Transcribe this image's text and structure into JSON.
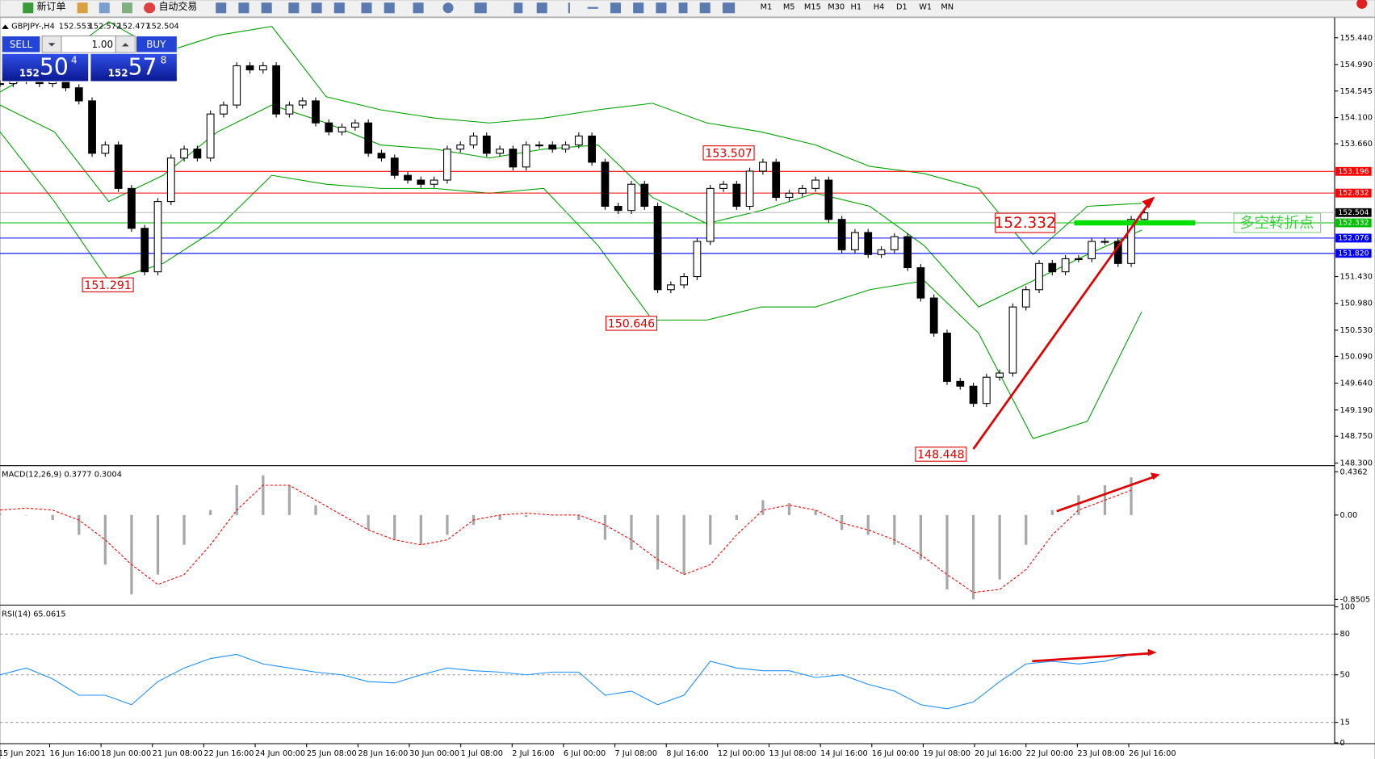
{
  "toolbar": {
    "new_order": "新订单",
    "auto_trading": "自动交易",
    "timeframes": [
      "M1",
      "M5",
      "M15",
      "M30",
      "H1",
      "H4",
      "D1",
      "W1",
      "MN"
    ]
  },
  "header": {
    "symbol": "GBPJPY-,H4",
    "ohlc": [
      "152.553",
      "152.572",
      "152.477",
      "152.504"
    ]
  },
  "trade_panel": {
    "sell": "SELL",
    "buy": "BUY",
    "volume": "1.00",
    "bid": {
      "big": "152",
      "pips": "50",
      "point": "4"
    },
    "ask": {
      "big": "152",
      "pips": "57",
      "point": "8"
    }
  },
  "chart_data": [
    {
      "type": "candlestick",
      "values": [
        154.67,
        154.72,
        154.75,
        154.67,
        154.72,
        154.6,
        154.38,
        153.5,
        153.64,
        152.91,
        152.24,
        151.51,
        152.69,
        153.42,
        153.57,
        153.42,
        154.16,
        154.31,
        154.97,
        154.9,
        154.97,
        154.16,
        154.31,
        154.38,
        154.01,
        153.86,
        153.94,
        154.01,
        153.5,
        153.42,
        153.13,
        153.05,
        152.98,
        153.05,
        153.57,
        153.64,
        153.79,
        153.5,
        153.57,
        153.27,
        153.64,
        153.64,
        153.57,
        153.64,
        153.79,
        153.35,
        152.61,
        152.54,
        152.98,
        152.61,
        151.21,
        151.29,
        151.43,
        152.02,
        152.91,
        152.98,
        152.61,
        153.2,
        153.35,
        152.76,
        152.83,
        152.91,
        153.05,
        152.39,
        151.88,
        152.17,
        151.8,
        151.88,
        152.1,
        151.58,
        151.07,
        150.48,
        149.67,
        149.59,
        149.3,
        149.74,
        149.81,
        150.92,
        151.21,
        151.65,
        151.51,
        151.73,
        151.73,
        152.02,
        152.02,
        151.65,
        152.39,
        152.5
      ],
      "bands": {
        "upper": [
          154.53,
          155.04,
          155.71,
          155.19,
          155.48,
          155.63,
          154.45,
          154.23,
          154.09,
          154.01,
          154.09,
          154.23,
          154.34,
          154.01,
          153.86,
          153.64,
          153.28,
          153.16,
          152.91,
          151.8,
          152.61,
          152.66
        ],
        "middle": [
          154.31,
          153.86,
          152.69,
          153.13,
          153.86,
          154.31,
          154.01,
          153.64,
          153.57,
          153.42,
          153.57,
          153.64,
          152.76,
          152.32,
          152.54,
          152.83,
          152.61,
          151.95,
          150.92,
          151.36,
          151.8,
          152.21
        ],
        "lower": [
          153.86,
          152.69,
          151.36,
          151.65,
          152.24,
          153.13,
          152.98,
          152.91,
          152.91,
          152.83,
          152.91,
          151.95,
          150.7,
          150.7,
          150.92,
          150.92,
          151.21,
          151.36,
          150.48,
          148.71,
          149.0,
          150.84
        ],
        "color": "#00a000"
      },
      "ylim": [
        148.27,
        155.75
      ],
      "yticks": [
        {
          "value": 155.44,
          "label": "155.440"
        },
        {
          "value": 154.99,
          "label": "154.990"
        },
        {
          "value": 154.545,
          "label": "154.545"
        },
        {
          "value": 154.1,
          "label": "154.100"
        },
        {
          "value": 153.66,
          "label": "153.660"
        },
        {
          "value": 151.43,
          "label": "151.430"
        },
        {
          "value": 150.98,
          "label": "150.980"
        },
        {
          "value": 150.53,
          "label": "150.530"
        },
        {
          "value": 150.09,
          "label": "150.090"
        },
        {
          "value": 149.64,
          "label": "149.640"
        },
        {
          "value": 149.19,
          "label": "149.190"
        },
        {
          "value": 148.75,
          "label": "148.750"
        },
        {
          "value": 148.3,
          "label": "148.300"
        }
      ],
      "levels": [
        {
          "value": 153.196,
          "color": "#ff0000"
        },
        {
          "value": 152.832,
          "color": "#ff0000"
        },
        {
          "value": 152.504,
          "color": "#c0c0c0"
        },
        {
          "value": 152.332,
          "color": "#00c000"
        },
        {
          "value": 152.076,
          "color": "#0000ff"
        },
        {
          "value": 151.82,
          "label": "151.820",
          "color": "#0000ff"
        }
      ],
      "annotations": [
        153.507,
        151.291,
        150.646,
        148.448
      ],
      "turn_price": 152.332,
      "note": "多空转折点",
      "time_labels": [
        "15 Jun 2021",
        "16 Jun 16:00",
        "18 Jun 00:00",
        "21 Jun 08:00",
        "22 Jun 16:00",
        "24 Jun 00:00",
        "25 Jun 08:00",
        "28 Jun 16:00",
        "30 Jun 00:00",
        "1 Jul 08:00",
        "2 Jul 16:00",
        "6 Jul 00:00",
        "7 Jul 08:00",
        "8 Jul 16:00",
        "12 Jul 00:00",
        "13 Jul 08:00",
        "14 Jul 16:00",
        "16 Jul 00:00",
        "19 Jul 08:00",
        "20 Jul 16:00",
        "22 Jul 00:00",
        "23 Jul 08:00",
        "26 Jul 16:00"
      ]
    },
    {
      "type": "macd",
      "title": "MACD(12,26,9) 0.3777 0.3004",
      "ylim": [
        -0.89,
        0.48
      ],
      "yticks": [
        0.4362,
        {
          "value": 0,
          "label": "0.00"
        },
        -0.8505
      ],
      "histogram": [
        0.02,
        0.0,
        -0.05,
        -0.2,
        -0.5,
        -0.8,
        -0.6,
        -0.3,
        0.05,
        0.3,
        0.4,
        0.3,
        0.1,
        0.0,
        -0.15,
        -0.25,
        -0.3,
        -0.2,
        -0.1,
        -0.05,
        -0.02,
        0.0,
        -0.05,
        -0.25,
        -0.35,
        -0.55,
        -0.6,
        -0.3,
        -0.05,
        0.15,
        0.12,
        0.05,
        -0.15,
        -0.2,
        -0.3,
        -0.45,
        -0.75,
        -0.85,
        -0.65,
        -0.3,
        0.05,
        0.2,
        0.3,
        0.38
      ],
      "signal": [
        0.05,
        0.07,
        0.05,
        -0.05,
        -0.25,
        -0.5,
        -0.7,
        -0.6,
        -0.3,
        0.05,
        0.3,
        0.3,
        0.15,
        0.0,
        -0.15,
        -0.25,
        -0.3,
        -0.25,
        -0.05,
        0.0,
        0.02,
        0.0,
        0.0,
        -0.1,
        -0.25,
        -0.45,
        -0.6,
        -0.5,
        -0.2,
        0.05,
        0.1,
        0.05,
        -0.08,
        -0.15,
        -0.25,
        -0.4,
        -0.6,
        -0.78,
        -0.75,
        -0.55,
        -0.2,
        0.05,
        0.15,
        0.25
      ],
      "histogram_color": "#a8a8a8",
      "signal_color": "#ff0000"
    },
    {
      "type": "rsi",
      "title": "RSI(14) 65.0615",
      "ylim": [
        0,
        100
      ],
      "yticks": [
        100,
        80,
        50,
        15,
        0
      ],
      "values": [
        50,
        55,
        47,
        35,
        35,
        28,
        45,
        55,
        62,
        65,
        58,
        55,
        52,
        50,
        45,
        44,
        50,
        55,
        53,
        52,
        50,
        52,
        52,
        35,
        38,
        28,
        35,
        60,
        55,
        53,
        53,
        48,
        50,
        43,
        38,
        28,
        25,
        30,
        45,
        58,
        60,
        58,
        60,
        65
      ],
      "color": "#1e90ff"
    }
  ]
}
